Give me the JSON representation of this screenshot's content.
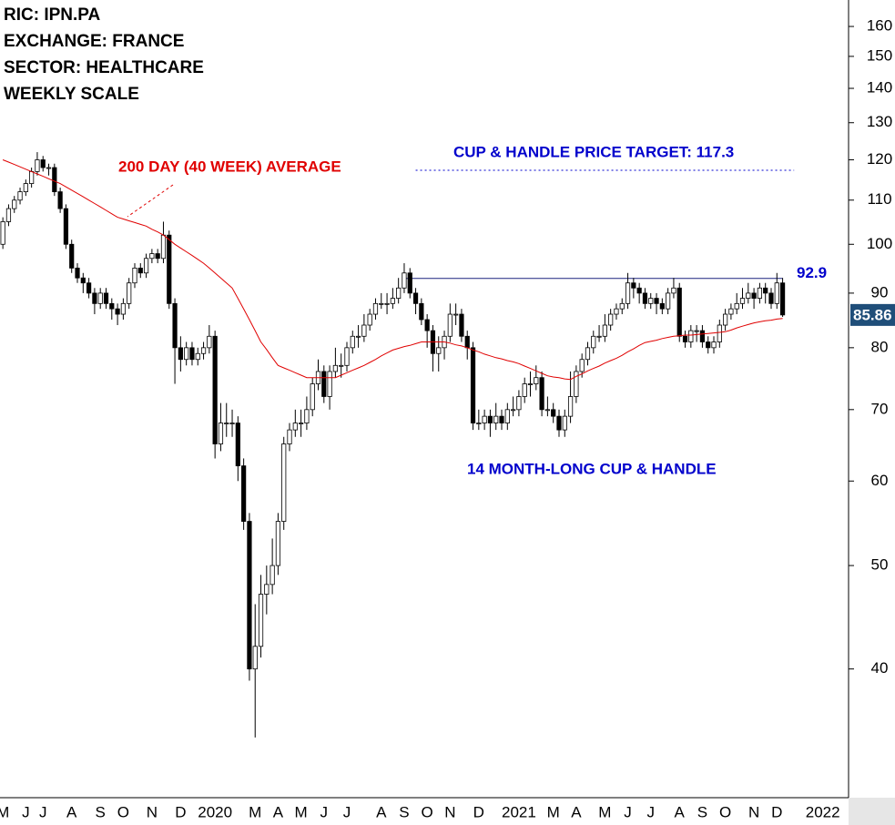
{
  "chart_data": {
    "type": "candlestick",
    "info_lines": [
      "RIC: IPN.PA",
      "EXCHANGE: FRANCE",
      "SECTOR: HEALTHCARE",
      "WEEKLY SCALE"
    ],
    "annotations": {
      "ma_label": "200 DAY (40 WEEK) AVERAGE",
      "target_label": "CUP & HANDLE PRICE TARGET: 117.3",
      "target": 117.3,
      "resistance": 92.9,
      "pattern_label": "14 MONTH-LONG CUP & HANDLE",
      "ma_color": "#e00000",
      "blue": "#0000cc",
      "resistance_color": "#1a237e"
    },
    "categories": [
      "M",
      null,
      null,
      null,
      "J",
      null,
      null,
      "J",
      null,
      null,
      null,
      null,
      "A",
      null,
      null,
      null,
      null,
      "S",
      null,
      null,
      null,
      "O",
      null,
      null,
      null,
      null,
      "N",
      null,
      null,
      null,
      null,
      "D",
      null,
      null,
      null,
      null,
      null,
      "2020",
      null,
      null,
      null,
      null,
      null,
      null,
      "M",
      null,
      null,
      null,
      "A",
      null,
      null,
      null,
      "M",
      null,
      null,
      null,
      "J",
      null,
      null,
      null,
      "J",
      null,
      null,
      null,
      null,
      null,
      "A",
      null,
      null,
      null,
      "S",
      null,
      null,
      null,
      "O",
      null,
      null,
      null,
      "N",
      null,
      null,
      null,
      null,
      "D",
      null,
      null,
      null,
      null,
      null,
      null,
      "2021",
      null,
      null,
      null,
      null,
      null,
      "M",
      null,
      null,
      null,
      "A",
      null,
      null,
      null,
      null,
      "M",
      null,
      null,
      null,
      "J",
      null,
      null,
      null,
      "J",
      null,
      null,
      null,
      null,
      "A",
      null,
      null,
      null,
      "S",
      null,
      null,
      null,
      "O",
      null,
      null,
      null,
      null,
      "N",
      null,
      null,
      null,
      "D",
      null,
      null,
      null,
      null,
      null,
      null,
      null,
      "2022",
      null,
      null,
      null,
      null
    ],
    "open": [
      100,
      105,
      108,
      110,
      112,
      114,
      117,
      120,
      118,
      118,
      112,
      108,
      100,
      95,
      93,
      92,
      90,
      88,
      90,
      88,
      87,
      86,
      88,
      92,
      95,
      94,
      97,
      98,
      97,
      102,
      88,
      80,
      78,
      80,
      78,
      79,
      80,
      82,
      65,
      68,
      68,
      68,
      62,
      55,
      40,
      42,
      47,
      48,
      50,
      55,
      65,
      67,
      68,
      68,
      70,
      74,
      76,
      72,
      76,
      77,
      77,
      80,
      82,
      82,
      84,
      86,
      88,
      88,
      88,
      89,
      91,
      94,
      90,
      88,
      85,
      83,
      79,
      80,
      82,
      86,
      86,
      82,
      80,
      68,
      68,
      69,
      68,
      69,
      68,
      70,
      70,
      72,
      74,
      74,
      75,
      70,
      70,
      69,
      67,
      69,
      72,
      76,
      78,
      80,
      82,
      82,
      84,
      86,
      87,
      88,
      92,
      91,
      90,
      88,
      89,
      88,
      87,
      90,
      91,
      82,
      81,
      83,
      83,
      81,
      80,
      81,
      84,
      86,
      87,
      88,
      89,
      90,
      89,
      91,
      90,
      88,
      92,
      null,
      null,
      null,
      null,
      null,
      null,
      null,
      null,
      null,
      null,
      null
    ],
    "high": [
      106,
      109,
      111,
      113,
      115,
      118,
      122,
      121,
      119,
      119,
      113,
      109,
      101,
      96,
      94,
      93,
      91,
      91,
      91,
      89,
      88,
      89,
      93,
      96,
      96,
      98,
      99,
      99,
      105,
      103,
      89,
      82,
      81,
      81,
      80,
      81,
      84,
      83,
      71,
      71,
      70,
      69,
      63,
      56,
      46,
      49,
      50,
      53,
      56,
      66,
      68,
      70,
      70,
      72,
      75,
      78,
      77,
      77,
      80,
      79,
      81,
      83,
      84,
      86,
      87,
      89,
      90,
      90,
      91,
      93,
      96,
      95,
      91,
      89,
      86,
      84,
      82,
      83,
      88,
      88,
      87,
      83,
      81,
      70,
      70,
      70,
      71,
      70,
      71,
      72,
      73,
      75,
      76,
      77,
      76,
      72,
      71,
      70,
      70,
      76,
      77,
      79,
      81,
      83,
      84,
      86,
      87,
      88,
      89,
      94,
      93,
      92,
      91,
      90,
      90,
      89,
      91,
      93,
      92,
      83,
      84,
      84,
      84,
      82,
      82,
      85,
      87,
      88,
      90,
      91,
      92,
      91,
      92,
      92,
      91,
      94,
      93,
      null,
      null,
      null,
      null,
      null,
      null,
      null,
      null,
      null,
      null,
      null
    ],
    "low": [
      99,
      104,
      107,
      109,
      111,
      113,
      116,
      117,
      116,
      111,
      107,
      99,
      94,
      92,
      90,
      89,
      86,
      87,
      87,
      85,
      84,
      85,
      87,
      91,
      93,
      93,
      96,
      96,
      96,
      87,
      74,
      76,
      77,
      77,
      77,
      78,
      79,
      63,
      64,
      66,
      66,
      60,
      54,
      39,
      34.5,
      41,
      45,
      47,
      49,
      54,
      64,
      66,
      66,
      67,
      69,
      73,
      71,
      70,
      75,
      75,
      76,
      79,
      80,
      81,
      83,
      85,
      87,
      86,
      87,
      88,
      90,
      89,
      86,
      84,
      80,
      76,
      76,
      78,
      81,
      84,
      81,
      78,
      67,
      67,
      67,
      66,
      67,
      67,
      67,
      69,
      69,
      71,
      72,
      73,
      69,
      69,
      68,
      66,
      66,
      68,
      71,
      75,
      77,
      79,
      81,
      81,
      83,
      85,
      86,
      87,
      89,
      88,
      87,
      87,
      86,
      86,
      86,
      89,
      81,
      80,
      80,
      81,
      80,
      79,
      79,
      80,
      83,
      85,
      86,
      87,
      88,
      87,
      88,
      88,
      87,
      87,
      85.5,
      null,
      null,
      null,
      null,
      null,
      null,
      null,
      null,
      null,
      null,
      null
    ],
    "close": [
      105,
      108,
      110,
      112,
      114,
      117,
      120,
      118,
      118,
      112,
      108,
      100,
      95,
      93,
      92,
      90,
      88,
      90,
      88,
      87,
      86,
      88,
      92,
      95,
      94,
      97,
      98,
      97,
      102,
      88,
      80,
      78,
      80,
      78,
      79,
      80,
      82,
      65,
      68,
      68,
      68,
      62,
      55,
      40,
      42,
      47,
      48,
      50,
      55,
      65,
      67,
      68,
      68,
      70,
      74,
      76,
      72,
      76,
      77,
      77,
      80,
      82,
      82,
      84,
      86,
      88,
      88,
      88,
      89,
      91,
      94,
      90,
      88,
      85,
      83,
      79,
      80,
      82,
      86,
      86,
      82,
      80,
      68,
      68,
      69,
      68,
      69,
      68,
      70,
      70,
      72,
      74,
      74,
      75,
      70,
      70,
      69,
      67,
      69,
      72,
      76,
      78,
      80,
      82,
      82,
      84,
      86,
      87,
      88,
      92,
      91,
      90,
      88,
      89,
      88,
      87,
      90,
      91,
      82,
      81,
      83,
      83,
      81,
      80,
      81,
      84,
      86,
      87,
      88,
      89,
      90,
      89,
      91,
      90,
      88,
      92,
      85.86,
      null,
      null,
      null,
      null,
      null,
      null,
      null,
      null,
      null,
      null,
      null
    ],
    "moving_average": [
      120,
      119.4,
      118.8,
      118.2,
      117.6,
      117,
      116.4,
      115.8,
      115.2,
      114.6,
      114,
      113.2,
      112.4,
      111.6,
      110.8,
      110,
      109.2,
      108.4,
      107.6,
      106.8,
      106,
      105.6,
      105.2,
      104.8,
      104.4,
      104,
      103.3,
      102.7,
      102,
      101,
      100,
      99.2,
      98.4,
      97.6,
      96.8,
      96,
      95,
      94,
      93,
      92,
      91,
      89,
      87,
      85,
      83,
      81,
      79.7,
      78.3,
      77,
      76.6,
      76.2,
      75.8,
      75.4,
      75,
      75,
      75,
      75,
      75,
      75,
      75.4,
      75.8,
      76.2,
      76.6,
      77,
      77.5,
      78,
      78.6,
      79.1,
      79.6,
      79.9,
      80.2,
      80.4,
      80.7,
      81,
      81,
      81,
      81,
      81,
      80.8,
      80.5,
      80.3,
      80,
      79.6,
      79.3,
      78.9,
      78.6,
      78.3,
      78.1,
      77.8,
      77.6,
      77.3,
      76.9,
      76.5,
      76.1,
      75.7,
      75.3,
      75.1,
      75,
      74.8,
      74.7,
      75.2,
      75.6,
      76.1,
      76.5,
      76.9,
      77.4,
      77.8,
      78.2,
      78.7,
      79.3,
      79.8,
      80.4,
      80.9,
      81.1,
      81.3,
      81.6,
      81.8,
      82,
      82.1,
      82.2,
      82.2,
      82.3,
      82.4,
      82.5,
      82.6,
      82.7,
      82.8,
      83.1,
      83.5,
      83.8,
      84.1,
      84.4,
      84.6,
      84.8,
      84.9,
      85.1,
      85.2,
      null,
      null,
      null,
      null,
      null,
      null,
      null,
      null,
      null,
      null,
      null
    ],
    "up_color": "#ffffff",
    "down_color": "#000000",
    "last_price_color": "#1f4e79",
    "ylim": [
      30.3,
      169.4
    ],
    "log_y": true,
    "yticks": [
      40,
      50,
      60,
      70,
      80,
      90,
      100,
      110,
      120,
      130,
      140,
      150,
      160
    ]
  }
}
